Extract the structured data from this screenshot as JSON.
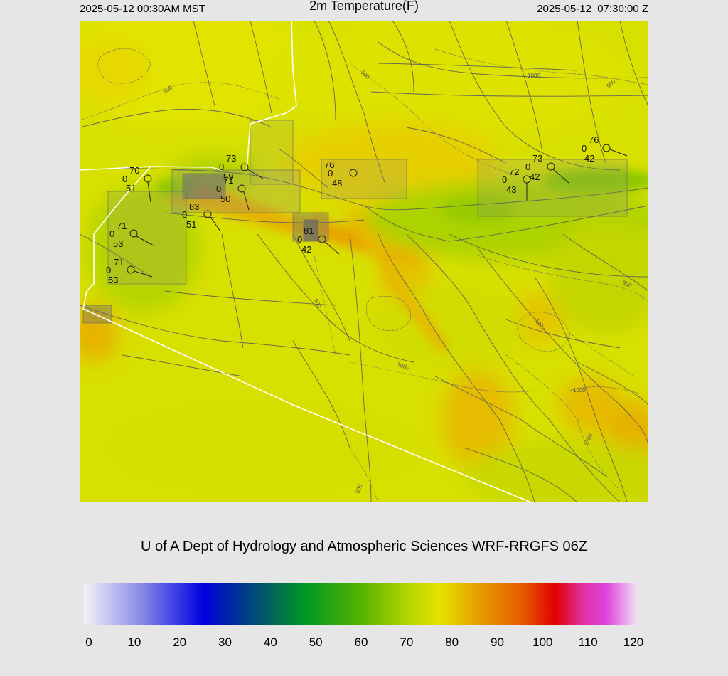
{
  "header": {
    "local_time": "2025-05-12 00:30AM MST",
    "title": "2m Temperature(F)",
    "utc_time": "2025-05-12_07:30:00 Z"
  },
  "credit": "U of A Dept of Hydrology and Atmospheric Sciences WRF-RRGFS 06Z",
  "map": {
    "field": "2m Temperature(F)",
    "contour_labels": [
      "500",
      "500",
      "1000",
      "500",
      "500",
      "500",
      "1000",
      "1000",
      "500",
      "1000",
      "1500",
      "1000",
      "500"
    ],
    "stations": [
      {
        "id": "stn-1",
        "temp": "70",
        "dew": "51",
        "cloud": "0"
      },
      {
        "id": "stn-2",
        "temp": "73",
        "dew": "59",
        "cloud": "0"
      },
      {
        "id": "stn-3",
        "temp": "71",
        "dew": "50",
        "cloud": "0"
      },
      {
        "id": "stn-4",
        "temp": "83",
        "dew": "51",
        "cloud": "0"
      },
      {
        "id": "stn-5",
        "temp": "71",
        "dew": "53",
        "cloud": "0"
      },
      {
        "id": "stn-6",
        "temp": "71",
        "dew": "53",
        "cloud": "0"
      },
      {
        "id": "stn-7",
        "temp": "76",
        "dew": "48",
        "cloud": "0"
      },
      {
        "id": "stn-8",
        "temp": "81",
        "dew": "42",
        "cloud": "0"
      },
      {
        "id": "stn-9",
        "temp": "72",
        "dew": "43",
        "cloud": "0"
      },
      {
        "id": "stn-10",
        "temp": "73",
        "dew": "42",
        "cloud": "0"
      },
      {
        "id": "stn-11",
        "temp": "76",
        "dew": "42",
        "cloud": "0"
      }
    ]
  },
  "colorbar": {
    "min": 0,
    "max": 120,
    "ticks": [
      "0",
      "10",
      "20",
      "30",
      "40",
      "50",
      "60",
      "70",
      "80",
      "90",
      "100",
      "110",
      "120"
    ],
    "stops": [
      {
        "value": 0,
        "color": "#f2f2f7"
      },
      {
        "value": 12,
        "color": "#8c8ee8"
      },
      {
        "value": 26,
        "color": "#0000e0"
      },
      {
        "value": 31,
        "color": "#0022aa"
      },
      {
        "value": 40,
        "color": "#006060"
      },
      {
        "value": 48,
        "color": "#009922"
      },
      {
        "value": 60,
        "color": "#55b300"
      },
      {
        "value": 70,
        "color": "#b4d400"
      },
      {
        "value": 77,
        "color": "#e6e200"
      },
      {
        "value": 86,
        "color": "#e69a00"
      },
      {
        "value": 95,
        "color": "#e65a00"
      },
      {
        "value": 102,
        "color": "#e00000"
      },
      {
        "value": 108,
        "color": "#e030a0"
      },
      {
        "value": 113,
        "color": "#dd44dd"
      },
      {
        "value": 120,
        "color": "#f4e6f4"
      }
    ]
  }
}
